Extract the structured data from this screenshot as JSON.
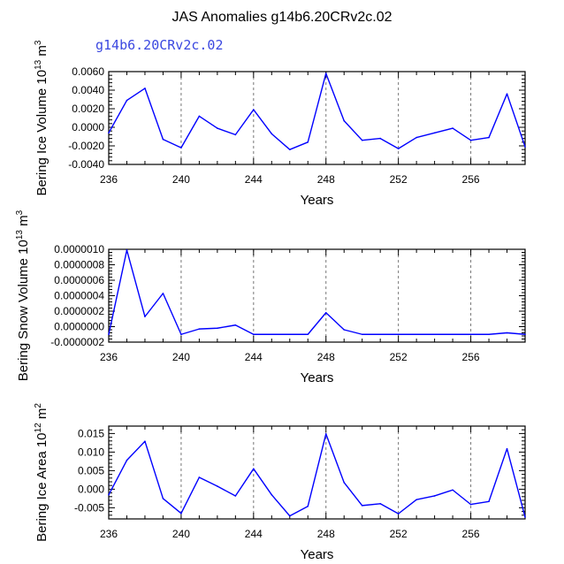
{
  "page": {
    "title": "JAS Anomalies g14b6.20CRv2c.02",
    "subtitle": "g14b6.20CRv2c.02"
  },
  "colors": {
    "series": "#0000ff",
    "subtitle": "#3b48e0",
    "grid": "#777777",
    "frame": "#000000"
  },
  "chart_data": [
    {
      "type": "line",
      "title": "",
      "xlabel": "Years",
      "ylabel_prefix": "Bering Ice Volume 10",
      "ylabel_exp": "13",
      "ylabel_unit": " m",
      "ylabel_unit_exp": "3",
      "x": [
        236,
        237,
        238,
        239,
        240,
        241,
        242,
        243,
        244,
        245,
        246,
        247,
        248,
        249,
        250,
        251,
        252,
        253,
        254,
        255,
        256,
        257,
        258,
        259
      ],
      "series": [
        {
          "values": [
            -0.0006,
            0.0029,
            0.0042,
            -0.0013,
            -0.0022,
            0.0012,
            -0.0001,
            -0.0008,
            0.0019,
            -0.0007,
            -0.0024,
            -0.0016,
            0.0058,
            0.0007,
            -0.0014,
            -0.0012,
            -0.0023,
            -0.0011,
            -0.0006,
            -0.0001,
            -0.0014,
            -0.0011,
            0.0036,
            -0.0021
          ]
        }
      ],
      "xlim": [
        236,
        259
      ],
      "ylim": [
        -0.004,
        0.006
      ],
      "xticks": [
        236,
        240,
        244,
        248,
        252,
        256
      ],
      "xtick_labels": [
        "236",
        "240",
        "244",
        "248",
        "252",
        "256"
      ],
      "yticks": [
        -0.004,
        -0.002,
        0.0,
        0.002,
        0.004,
        0.006
      ],
      "ytick_labels": [
        "-0.0040",
        "-0.0020",
        "0.0000",
        "0.0020",
        "0.0040",
        "0.0060"
      ],
      "grid": "vertical dashed at x ticks"
    },
    {
      "type": "line",
      "title": "",
      "xlabel": "Years",
      "ylabel_prefix": "Bering Snow Volume 10",
      "ylabel_exp": "13",
      "ylabel_unit": " m",
      "ylabel_unit_exp": "3",
      "x": [
        236,
        237,
        238,
        239,
        240,
        241,
        242,
        243,
        244,
        245,
        246,
        247,
        248,
        249,
        250,
        251,
        252,
        253,
        254,
        255,
        256,
        257,
        258,
        259
      ],
      "series": [
        {
          "values": [
            -1e-07,
            9.9e-07,
            1.3e-07,
            4.3e-07,
            -1e-07,
            -3e-08,
            -2e-08,
            2e-08,
            -1e-07,
            -1e-07,
            -1e-07,
            -1e-07,
            1.8e-07,
            -4e-08,
            -1e-07,
            -1e-07,
            -1e-07,
            -1e-07,
            -1e-07,
            -1e-07,
            -1e-07,
            -1e-07,
            -8e-08,
            -1e-07
          ]
        }
      ],
      "xlim": [
        236,
        259
      ],
      "ylim": [
        -2e-07,
        1e-06
      ],
      "xticks": [
        236,
        240,
        244,
        248,
        252,
        256
      ],
      "xtick_labels": [
        "236",
        "240",
        "244",
        "248",
        "252",
        "256"
      ],
      "yticks": [
        -2e-07,
        0.0,
        2e-07,
        4e-07,
        6e-07,
        8e-07,
        1e-06
      ],
      "ytick_labels": [
        "-0.0000002",
        "0.0000000",
        "0.0000002",
        "0.0000004",
        "0.0000006",
        "0.0000008",
        "0.0000010"
      ],
      "grid": "vertical dashed at x ticks"
    },
    {
      "type": "line",
      "title": "",
      "xlabel": "Years",
      "ylabel_prefix": "Bering Ice Area 10",
      "ylabel_exp": "12",
      "ylabel_unit": " m",
      "ylabel_unit_exp": "2",
      "x": [
        236,
        237,
        238,
        239,
        240,
        241,
        242,
        243,
        244,
        245,
        246,
        247,
        248,
        249,
        250,
        251,
        252,
        253,
        254,
        255,
        256,
        257,
        258,
        259
      ],
      "series": [
        {
          "values": [
            -0.0015,
            0.0078,
            0.0129,
            -0.0025,
            -0.0065,
            0.0032,
            0.0008,
            -0.0018,
            0.0055,
            -0.0015,
            -0.0072,
            -0.0046,
            0.0149,
            0.0018,
            -0.0044,
            -0.0039,
            -0.0066,
            -0.0028,
            -0.0018,
            -0.0002,
            -0.0041,
            -0.0033,
            0.0109,
            -0.0075
          ]
        }
      ],
      "xlim": [
        236,
        259
      ],
      "ylim": [
        -0.008,
        0.017
      ],
      "xticks": [
        236,
        240,
        244,
        248,
        252,
        256
      ],
      "xtick_labels": [
        "236",
        "240",
        "244",
        "248",
        "252",
        "256"
      ],
      "yticks": [
        -0.005,
        0.0,
        0.005,
        0.01,
        0.015
      ],
      "ytick_labels": [
        "-0.005",
        "0.000",
        "0.005",
        "0.010",
        "0.015"
      ],
      "grid": "vertical dashed at x ticks"
    }
  ]
}
